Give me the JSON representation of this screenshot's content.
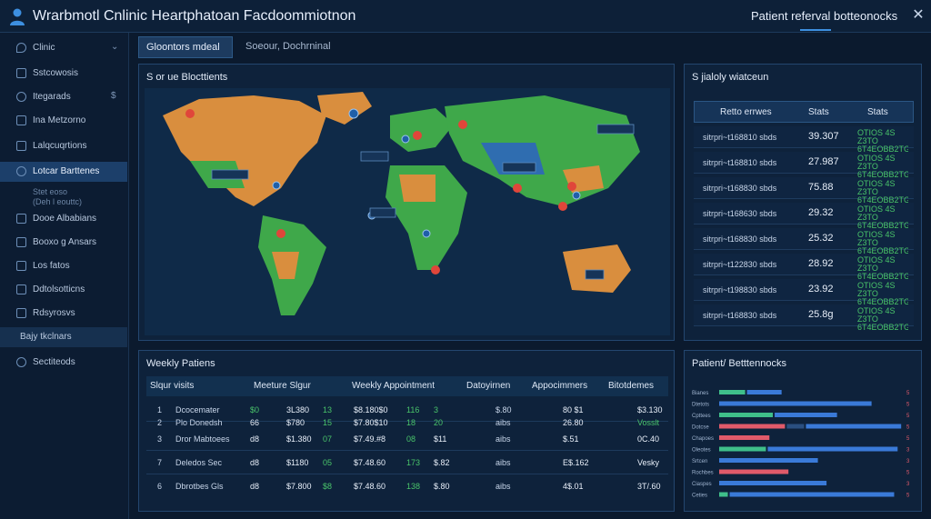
{
  "app": {
    "title": "Wrarbmotl Cnlinic  Heartphatoan Facdoommiotnon",
    "top_link": "Patient referval botteonocks"
  },
  "sidebar": {
    "items": [
      {
        "label": "Clinic"
      },
      {
        "label": "Sstcowosis"
      },
      {
        "label": "Itegarads"
      },
      {
        "label": "Ina Metzorno"
      },
      {
        "label": "Lalqcuqrtions"
      },
      {
        "label": "Lotcar Barttenes"
      },
      {
        "label": "Dooe Albabians"
      },
      {
        "label": "Booxo g Ansars"
      },
      {
        "label": "Los fatos"
      },
      {
        "label": "Ddtolsotticns"
      },
      {
        "label": "Rdsyrosvs"
      },
      {
        "label": "Bajy tkclnars"
      },
      {
        "label": "Sectiteods"
      }
    ],
    "sub_lines": [
      "Stet eoso",
      "(Deh l eouttc)"
    ]
  },
  "tabs": [
    {
      "label": "Gloontors mdeal"
    },
    {
      "label": "Soeour, Dochrninal"
    }
  ],
  "map": {
    "title": "S or ue Blocttients"
  },
  "stats": {
    "title": "S jialoly wiatceun",
    "headers": [
      "Retto errwes",
      "Stats",
      "Stats"
    ],
    "rows": [
      {
        "name": "sitrpri~t168810  sbds",
        "value": "39.307",
        "change": "OTIOS 4S Z3TO 6T4EOBB2TG"
      },
      {
        "name": "sitrpri~t168810  sbds",
        "value": "27.987",
        "change": "OTIOS 4S Z3TO 6T4EOBB2TG"
      },
      {
        "name": "sitrpri~t168830  sbds",
        "value": "75.88",
        "change": "OTIOS 4S Z3TO 6T4EOBB2TG"
      },
      {
        "name": "sitrpri~t168630  sbds",
        "value": "29.32",
        "change": "OTIOS 4S Z3TO 6T4EOBB2TG"
      },
      {
        "name": "sitrpri~t168830  sbds",
        "value": "25.32",
        "change": "OTIOS 4S Z3TO 6T4EOBB2TG"
      },
      {
        "name": "sitrpri~t122830  sbds",
        "value": "28.92",
        "change": "OTIOS 4S Z3TO 6T4EOBB2TG"
      },
      {
        "name": "sitrpri~t198830  sbds",
        "value": "23.92",
        "change": "OTIOS 4S Z3TO 6T4EOBB2TG"
      },
      {
        "name": "sitrpri~t168830  sbds",
        "value": "25.8g",
        "change": "OTIOS 4S Z3TO 6T4EOBB2TG"
      }
    ]
  },
  "weekly": {
    "title": "Weekly Patiens",
    "headers": [
      "Slqur visits",
      "Meeture Slgur",
      "Weekly Appointment",
      "Datoyirnen",
      "Appocimmers",
      "Bitotdemes"
    ],
    "rows": [
      {
        "n": "1",
        "name": "Dcocemater",
        "a": "$0",
        "b": "3L380",
        "c": "13",
        "d": "$8.180$0",
        "e": "116",
        "f": "3",
        "g": "$.80",
        "h": "80 $1",
        "i": "$3.130"
      },
      {
        "n": "2",
        "name": "Plo Donedsh",
        "a": "66",
        "b": "$780",
        "c": "15",
        "d": "$7.80$10",
        "e": "18",
        "f": "20",
        "g": "aibs",
        "h": "26.80",
        "i": "Vosslt"
      },
      {
        "n": "3",
        "name": "Dror Mabtoees",
        "a": "d8",
        "b": "$1.380",
        "c": "07",
        "d": "$7.49.#8",
        "e": "08",
        "f": "$11",
        "g": "aibs",
        "h": "$.51",
        "i": "0C.40"
      },
      {
        "n": "7",
        "name": "Deledos Sec",
        "a": "d8",
        "b": "$1180",
        "c": "05",
        "d": "$7.48.60",
        "e": "173",
        "f": "$.82",
        "g": "aibs",
        "h": "E$.162",
        "i": "Vesky"
      },
      {
        "n": "6",
        "name": "Dbrotbes Gls",
        "a": "d8",
        "b": "$7.800",
        "c": "$8",
        "d": "$7.48.60",
        "e": "138",
        "f": "$.80",
        "g": "aibs",
        "h": "4$.01",
        "i": "3T/.60"
      }
    ]
  },
  "referral": {
    "title": "Patient/ Betttennocks",
    "labels": [
      "Bianes",
      "Dtetots",
      "Cpttees",
      "Dotcse",
      "Chapoes",
      "Oleotes",
      "Srtcen",
      "Rochbes",
      "Ciaspes",
      "Ceties"
    ],
    "bars": [
      {
        "segments": [
          {
            "value": 30,
            "color": "#3fbf8a"
          },
          {
            "value": 40,
            "color": "#3a7ad8"
          }
        ]
      },
      {
        "segments": [
          {
            "value": 176,
            "color": "#3a7ad8"
          }
        ]
      },
      {
        "segments": [
          {
            "value": 62,
            "color": "#3fbf8a"
          },
          {
            "value": 72,
            "color": "#3a7ad8"
          }
        ]
      },
      {
        "segments": [
          {
            "value": 76,
            "color": "#e05a6a"
          },
          {
            "value": 20,
            "color": "#2a4f80"
          },
          {
            "value": 110,
            "color": "#3a7ad8"
          }
        ]
      },
      {
        "segments": [
          {
            "value": 58,
            "color": "#e05a6a"
          }
        ]
      },
      {
        "segments": [
          {
            "value": 54,
            "color": "#3fbf8a"
          },
          {
            "value": 150,
            "color": "#3a7ad8"
          }
        ]
      },
      {
        "segments": [
          {
            "value": 114,
            "color": "#3a7ad8"
          }
        ]
      },
      {
        "segments": [
          {
            "value": 80,
            "color": "#e05a6a"
          }
        ]
      },
      {
        "segments": [
          {
            "value": 124,
            "color": "#3a7ad8"
          }
        ]
      },
      {
        "segments": [
          {
            "value": 10,
            "color": "#3fbf8a"
          },
          {
            "value": 190,
            "color": "#3a7ad8"
          }
        ]
      }
    ],
    "end_marks": [
      "5",
      "5",
      "5",
      "5",
      "5",
      "3",
      "3",
      "5",
      "3",
      "5"
    ]
  }
}
